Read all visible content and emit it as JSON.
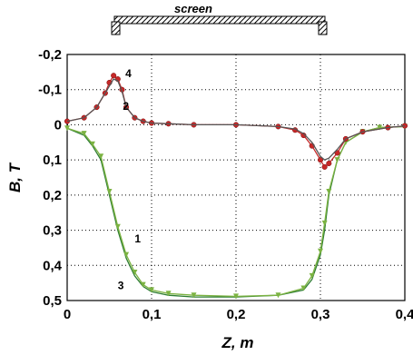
{
  "chart_data": {
    "type": "line",
    "xlabel": "Z, m",
    "ylabel": "B, T",
    "xlim": [
      0,
      0.4
    ],
    "ylim": [
      -0.2,
      0.5
    ],
    "y_inverted": true,
    "grid": true,
    "x_ticks": [
      {
        "v": 0,
        "label": "0"
      },
      {
        "v": 0.1,
        "label": "0,1"
      },
      {
        "v": 0.2,
        "label": "0,2"
      },
      {
        "v": 0.3,
        "label": "0,3"
      },
      {
        "v": 0.4,
        "label": "0,4"
      }
    ],
    "y_ticks": [
      {
        "v": -0.2,
        "label": "-0,2"
      },
      {
        "v": -0.1,
        "label": "-0,1"
      },
      {
        "v": 0,
        "label": "0"
      },
      {
        "v": 0.1,
        "label": "0,1"
      },
      {
        "v": 0.2,
        "label": "0,2"
      },
      {
        "v": 0.3,
        "label": "0,3"
      },
      {
        "v": 0.4,
        "label": "0,4"
      },
      {
        "v": 0.5,
        "label": "0,5"
      }
    ],
    "annotations": {
      "screen_label": "screen",
      "screen_range": [
        0.1,
        0.3
      ],
      "curve_labels": [
        {
          "text": "4",
          "x": 0.069,
          "y": -0.135
        },
        {
          "text": "2",
          "x": 0.066,
          "y": -0.042
        },
        {
          "text": "1",
          "x": 0.08,
          "y": 0.335
        },
        {
          "text": "3",
          "x": 0.06,
          "y": 0.468
        }
      ]
    },
    "series": [
      {
        "name": "1",
        "color": "#2e7d32",
        "marker": "none",
        "x": [
          0,
          0.02,
          0.03,
          0.04,
          0.05,
          0.06,
          0.07,
          0.08,
          0.09,
          0.1,
          0.12,
          0.15,
          0.2,
          0.25,
          0.28,
          0.29,
          0.3,
          0.305,
          0.31,
          0.32,
          0.33,
          0.35,
          0.37,
          0.4
        ],
        "y": [
          0.01,
          0.03,
          0.06,
          0.1,
          0.2,
          0.3,
          0.38,
          0.43,
          0.46,
          0.475,
          0.485,
          0.49,
          0.49,
          0.485,
          0.47,
          0.44,
          0.37,
          0.3,
          0.2,
          0.1,
          0.05,
          0.02,
          0.008,
          0.005
        ]
      },
      {
        "name": "3",
        "color": "#7cb342",
        "marker": "triangle",
        "x": [
          0,
          0.02,
          0.03,
          0.04,
          0.05,
          0.06,
          0.07,
          0.08,
          0.09,
          0.1,
          0.12,
          0.15,
          0.2,
          0.25,
          0.28,
          0.29,
          0.3,
          0.305,
          0.31,
          0.32,
          0.33,
          0.35,
          0.37,
          0.4
        ],
        "y": [
          0.01,
          0.025,
          0.055,
          0.09,
          0.19,
          0.29,
          0.37,
          0.42,
          0.455,
          0.47,
          0.48,
          0.485,
          0.488,
          0.485,
          0.465,
          0.43,
          0.36,
          0.28,
          0.19,
          0.1,
          0.05,
          0.02,
          0.008,
          0.005
        ]
      },
      {
        "name": "2",
        "color": "#c62828",
        "marker": "circle",
        "x": [
          0,
          0.02,
          0.035,
          0.045,
          0.05,
          0.055,
          0.06,
          0.065,
          0.07,
          0.08,
          0.09,
          0.1,
          0.12,
          0.15,
          0.2,
          0.25,
          0.27,
          0.28,
          0.29,
          0.3,
          0.305,
          0.31,
          0.32,
          0.33,
          0.35,
          0.38,
          0.4
        ],
        "y": [
          -0.01,
          -0.02,
          -0.05,
          -0.09,
          -0.12,
          -0.14,
          -0.13,
          -0.1,
          -0.05,
          -0.02,
          -0.01,
          -0.005,
          -0.003,
          0,
          0,
          0.005,
          0.015,
          0.03,
          0.06,
          0.1,
          0.12,
          0.11,
          0.08,
          0.04,
          0.02,
          0.008,
          0.003
        ]
      },
      {
        "name": "4",
        "color": "#555555",
        "marker": "none",
        "x": [
          0,
          0.02,
          0.035,
          0.045,
          0.05,
          0.055,
          0.06,
          0.065,
          0.07,
          0.08,
          0.09,
          0.1,
          0.12,
          0.15,
          0.2,
          0.25,
          0.27,
          0.28,
          0.29,
          0.3,
          0.305,
          0.31,
          0.32,
          0.33,
          0.35,
          0.38,
          0.4
        ],
        "y": [
          -0.01,
          -0.02,
          -0.05,
          -0.09,
          -0.11,
          -0.13,
          -0.125,
          -0.095,
          -0.05,
          -0.02,
          -0.01,
          -0.005,
          -0.003,
          0,
          0,
          0.005,
          0.012,
          0.025,
          0.05,
          0.09,
          0.1,
          0.095,
          0.07,
          0.04,
          0.02,
          0.008,
          0.003
        ]
      }
    ]
  }
}
